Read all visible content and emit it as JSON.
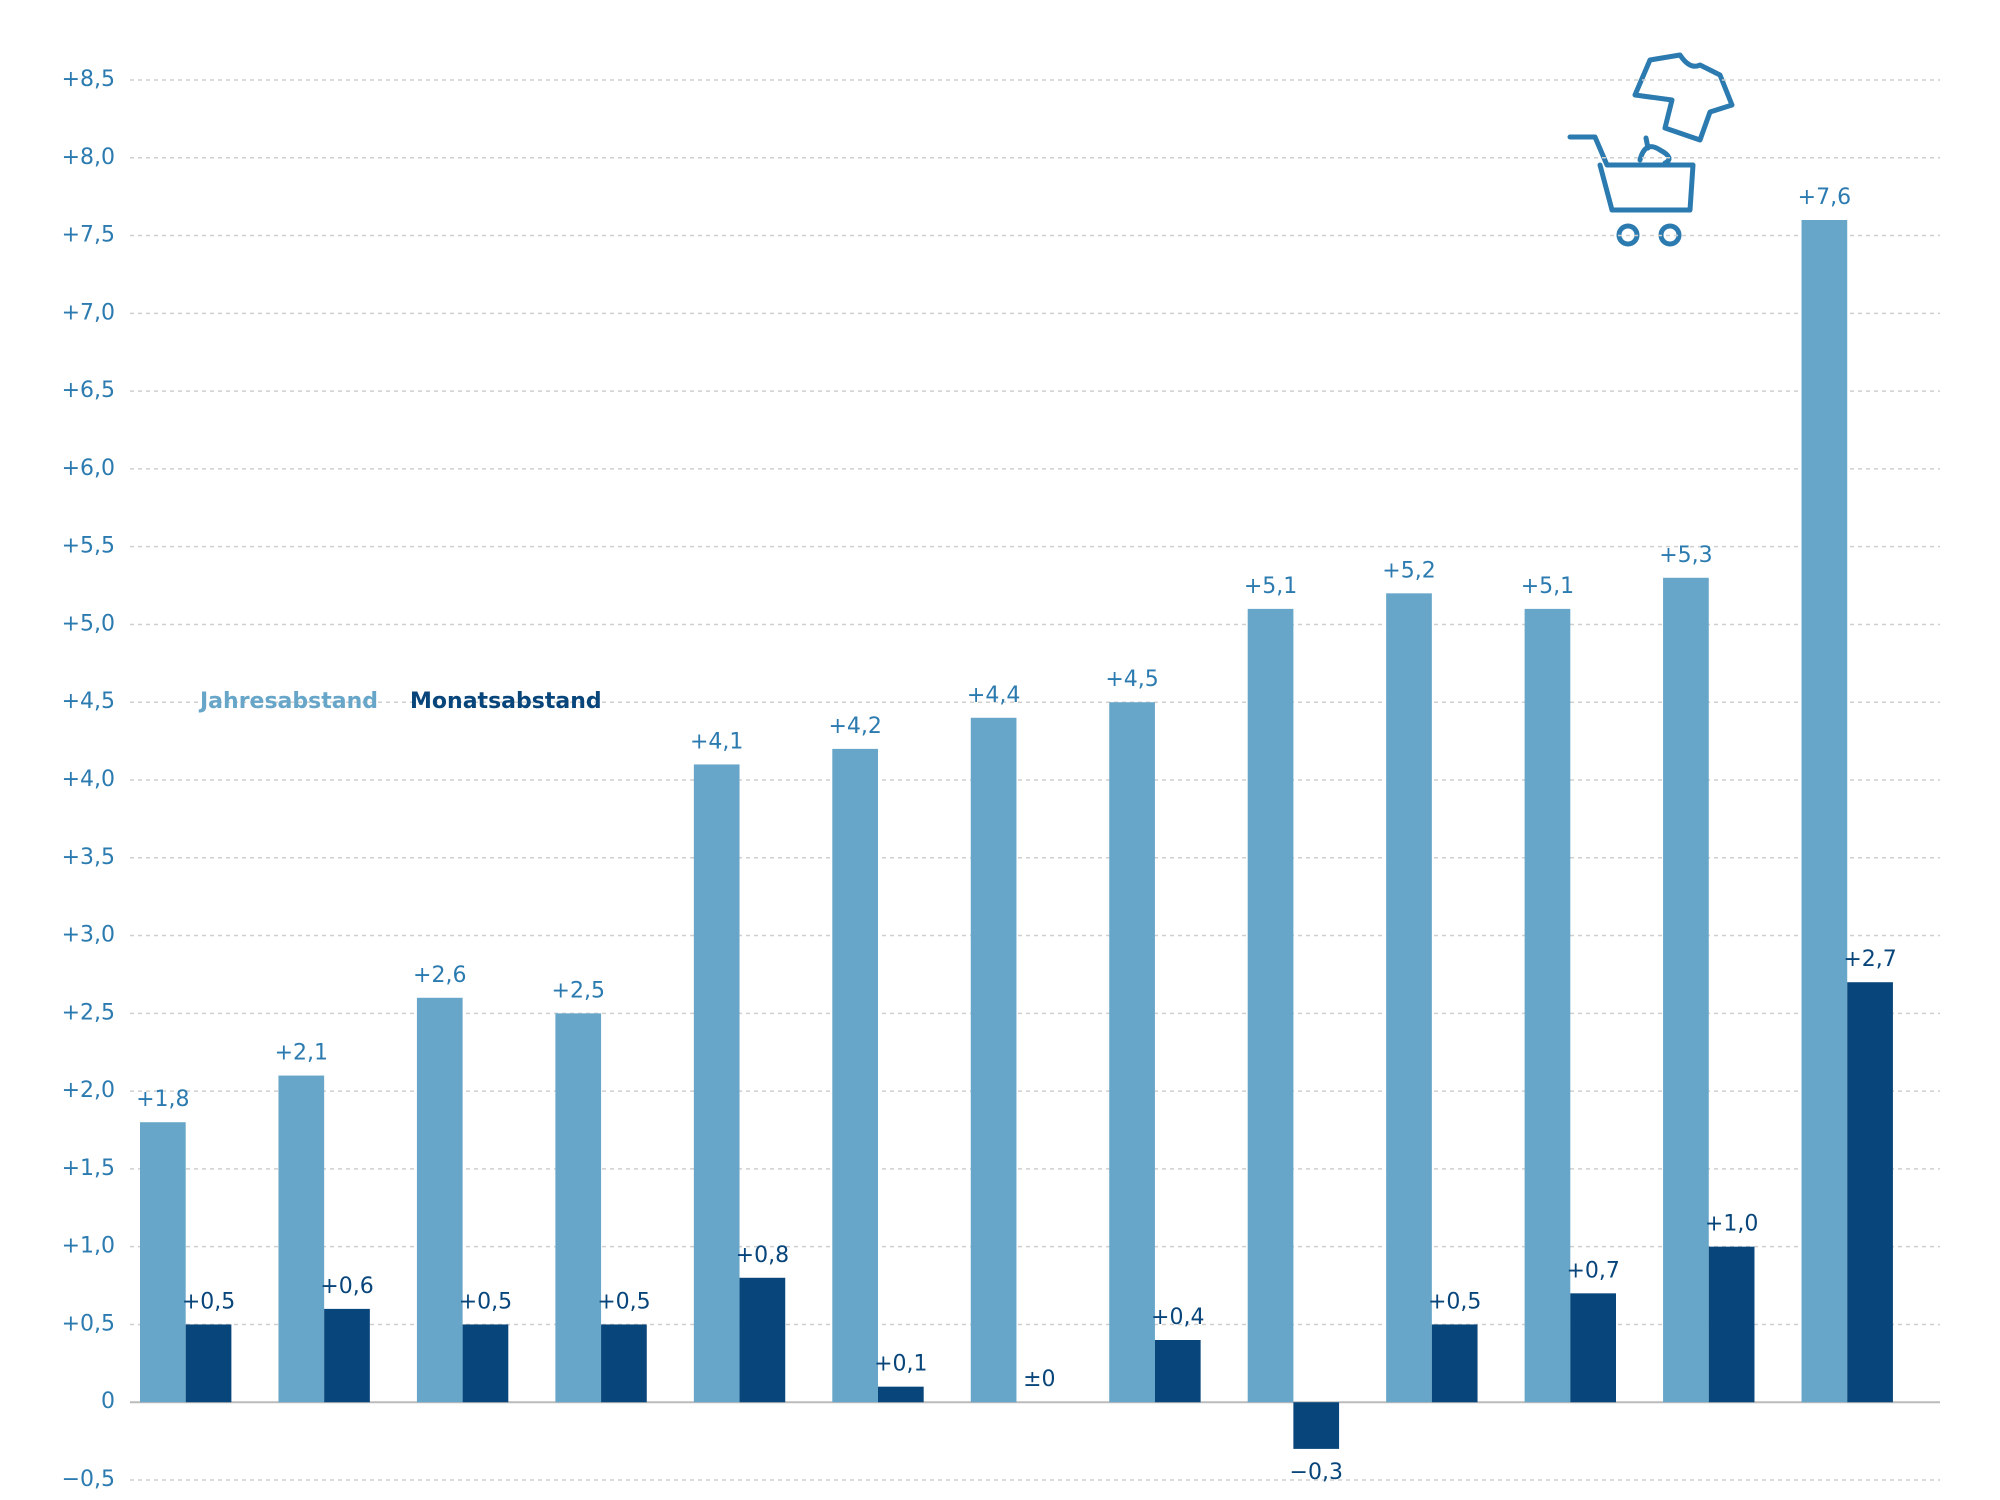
{
  "chart_data": {
    "type": "grouped-bar",
    "categories": [
      null,
      null,
      null,
      null,
      null,
      null,
      null,
      null,
      null,
      null,
      null,
      null,
      null
    ],
    "series": [
      {
        "name": "Jahresabstand",
        "color": "#67a6c8",
        "values": [
          1.8,
          2.1,
          2.6,
          2.5,
          4.1,
          4.2,
          4.4,
          4.5,
          5.1,
          5.2,
          5.1,
          5.3,
          7.6
        ],
        "value_labels": [
          "+1,8",
          "+2,1",
          "+2,6",
          "+2,5",
          "+4,1",
          "+4,2",
          "+4,4",
          "+4,5",
          "+5,1",
          "+5,2",
          "+5,1",
          "+5,3",
          "+7,6"
        ]
      },
      {
        "name": "Monatsabstand",
        "color": "#08457a",
        "values": [
          0.5,
          0.6,
          0.5,
          0.5,
          0.8,
          0.1,
          0,
          0.4,
          -0.3,
          0.5,
          0.7,
          1.0,
          2.7
        ],
        "value_labels": [
          "+0,5",
          "+0,6",
          "+0,5",
          "+0,5",
          "+0,8",
          "+0,1",
          "±0",
          "+0,4",
          "−0,3",
          "+0,5",
          "+0,7",
          "+1,0",
          "+2,7"
        ]
      }
    ],
    "ylim": [
      -0.5,
      8.5
    ],
    "yticks": [
      {
        "value": -0.5,
        "label": "−0,5"
      },
      0,
      {
        "value": 0.5,
        "label": "+0,5"
      },
      {
        "value": 1.0,
        "label": "+1,0"
      },
      {
        "value": 1.5,
        "label": "+1,5"
      },
      {
        "value": 2.0,
        "label": "+2,0"
      },
      {
        "value": 2.5,
        "label": "+2,5"
      },
      {
        "value": 3.0,
        "label": "+3,0"
      },
      {
        "value": 3.5,
        "label": "+3,5"
      },
      {
        "value": 4.0,
        "label": "+4,0"
      },
      {
        "value": 4.5,
        "label": "+4,5"
      },
      {
        "value": 5.0,
        "label": "+5,0"
      },
      {
        "value": 5.5,
        "label": "+5,5"
      },
      {
        "value": 6.0,
        "label": "+6,0"
      },
      {
        "value": 6.5,
        "label": "+6,5"
      },
      {
        "value": 7.0,
        "label": "+7,0"
      },
      {
        "value": 7.5,
        "label": "+7,5"
      },
      {
        "value": 8.0,
        "label": "+8,0"
      },
      {
        "value": 8.5,
        "label": "+8,5"
      }
    ],
    "grid": true,
    "legend_position": "left"
  }
}
